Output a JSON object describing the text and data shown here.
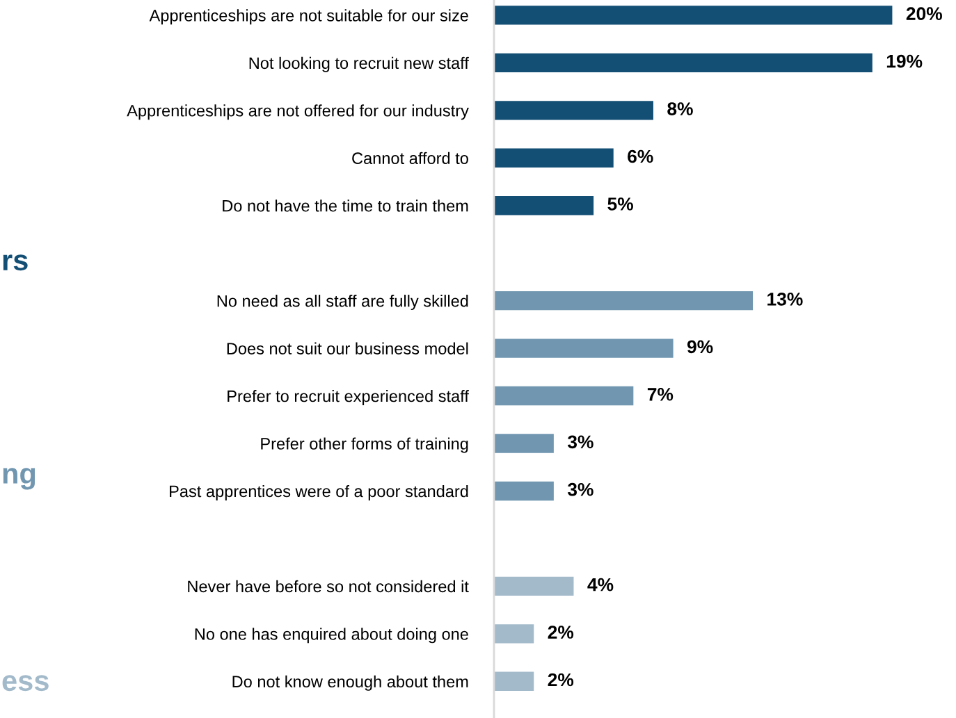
{
  "chart_data": {
    "type": "bar",
    "orientation": "horizontal",
    "categories": [
      "Apprenticeships are not suitable for our size",
      "Not looking to recruit new staff",
      "Apprenticeships are not offered for our industry",
      "Cannot afford to",
      "Do not have the time to train them",
      null,
      "No need as all staff are fully skilled",
      "Does not suit our business model",
      "Prefer to recruit experienced staff",
      "Prefer other forms of training",
      "Past apprentices were of a poor standard",
      null,
      "Never have before so not considered it",
      "No one has enquired about doing one",
      "Do not know enough about them"
    ],
    "values": [
      20,
      19,
      8,
      6,
      5,
      null,
      13,
      9,
      7,
      3,
      3,
      null,
      4,
      2,
      2
    ],
    "value_labels": [
      "20%",
      "19%",
      "8%",
      "6%",
      "5%",
      null,
      "13%",
      "9%",
      "7%",
      "3%",
      "3%",
      null,
      "4%",
      "2%",
      "2%"
    ],
    "colors": [
      "#134f75",
      "#134f75",
      "#134f75",
      "#134f75",
      "#134f75",
      null,
      "#7096b0",
      "#7096b0",
      "#7096b0",
      "#7096b0",
      "#7096b0",
      null,
      "#a3bacb",
      "#a3bacb",
      "#a3bacb"
    ],
    "annotations": [
      "rs",
      "ng",
      "ess"
    ],
    "grid": false,
    "legend": false
  }
}
